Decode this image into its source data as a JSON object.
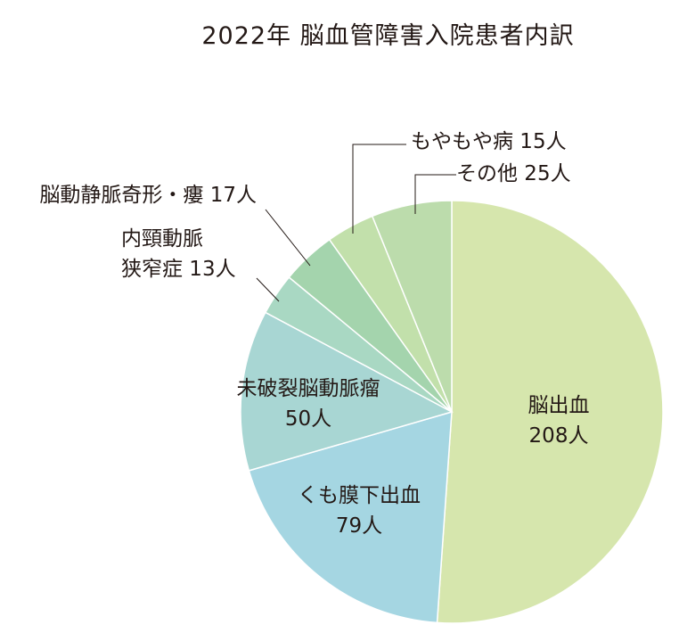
{
  "chart_data": {
    "type": "pie",
    "title": "2022年 脳血管障害入院患者内訳",
    "unit": "人",
    "slices": [
      {
        "name": "脳出血",
        "value": 208,
        "color": "#d6e6ad"
      },
      {
        "name": "くも膜下出血",
        "value": 79,
        "color": "#a5d6e2"
      },
      {
        "name": "未破裂脳動脈瘤",
        "value": 50,
        "color": "#a8d6d3"
      },
      {
        "name": "内頸動脈狭窄症",
        "value": 13,
        "color": "#a9d8c3"
      },
      {
        "name": "脳動静脈奇形・瘻",
        "value": 17,
        "color": "#a4d4ad"
      },
      {
        "name": "もやもや病",
        "value": 15,
        "color": "#c2e0ab"
      },
      {
        "name": "その他",
        "value": 25,
        "color": "#bcdcac"
      }
    ],
    "labels": [
      {
        "lines": [
          "脳出血",
          "208人"
        ]
      },
      {
        "lines": [
          "くも膜下出血",
          "79人"
        ]
      },
      {
        "lines": [
          "未破裂脳動脈瘤",
          "50人"
        ]
      },
      {
        "lines": [
          "内頸動脈",
          "狭窄症 13人"
        ]
      },
      {
        "lines": [
          "脳動静脈奇形・瘻 17人"
        ]
      },
      {
        "lines": [
          "もやもや病 15人"
        ]
      },
      {
        "lines": [
          "その他 25人"
        ]
      }
    ]
  }
}
